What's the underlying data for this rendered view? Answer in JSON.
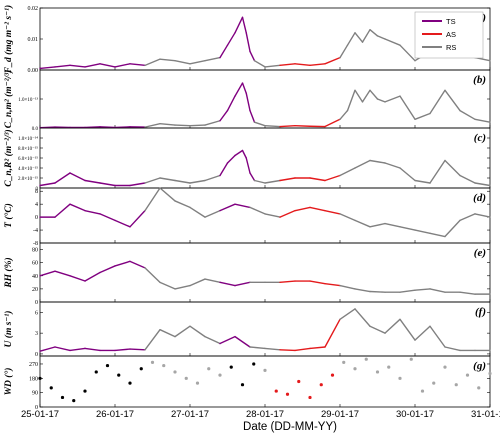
{
  "chart_data": {
    "type": "line",
    "xlabel": "Date (DD-MM-YY)",
    "x_ticks": [
      "25-01-17",
      "26-01-17",
      "27-01-17",
      "28-01-17",
      "29-01-17",
      "30-01-17",
      "31-01-17"
    ],
    "grid": false,
    "legend": {
      "position": "top-right",
      "entries": [
        {
          "name": "TS",
          "color": "#800080"
        },
        {
          "name": "AS",
          "color": "#e41a1c"
        },
        {
          "name": "RS",
          "color": "#808080"
        }
      ]
    },
    "series_colors": {
      "TS": "#800080",
      "AS": "#e41a1c",
      "RS": "#808080",
      "RS_wd": "#a6a6a6",
      "black": "#000000"
    },
    "segment_ranges": {
      "TS": [
        [
          25.0,
          26.45
        ],
        [
          27.45,
          27.86
        ]
      ],
      "RS": [
        [
          26.45,
          27.45
        ],
        [
          27.86,
          28.12
        ],
        [
          28.95,
          31.0
        ]
      ],
      "AS": [
        [
          28.12,
          28.95
        ]
      ]
    },
    "panels": [
      {
        "key": "a",
        "tag": "(a)",
        "ylabel": "F_d (mg m⁻² s⁻¹)",
        "ylim": [
          0,
          0.02
        ],
        "yticks": [
          0,
          0.01,
          0.02
        ],
        "ytick_labels": [
          "0.00",
          "0.01",
          "0.02"
        ],
        "style": "line",
        "x": [
          25.0,
          25.2,
          25.4,
          25.6,
          25.8,
          26.0,
          26.2,
          26.4,
          26.6,
          26.8,
          27.0,
          27.2,
          27.4,
          27.5,
          27.6,
          27.7,
          27.75,
          27.8,
          27.86,
          28.0,
          28.2,
          28.4,
          28.6,
          28.8,
          29.0,
          29.1,
          29.2,
          29.3,
          29.4,
          29.5,
          29.6,
          29.8,
          30.0,
          30.2,
          30.4,
          30.6,
          30.8,
          31.0
        ],
        "y": [
          0.0005,
          0.001,
          0.0015,
          0.001,
          0.002,
          0.001,
          0.002,
          0.0015,
          0.0035,
          0.003,
          0.002,
          0.003,
          0.004,
          0.008,
          0.012,
          0.017,
          0.012,
          0.006,
          0.003,
          0.001,
          0.0015,
          0.002,
          0.0015,
          0.002,
          0.004,
          0.008,
          0.012,
          0.009,
          0.013,
          0.011,
          0.01,
          0.008,
          0.003,
          0.006,
          0.012,
          0.008,
          0.004,
          0.003
        ]
      },
      {
        "key": "b",
        "tag": "(b)",
        "ylabel": "C_n,m² (m⁻²/³)",
        "ylim": [
          0,
          2e-13
        ],
        "yticks": [
          0,
          1e-13
        ],
        "ytick_labels": [
          "0.0",
          "1.0×10⁻¹³"
        ],
        "style": "line",
        "x": [
          25.0,
          25.2,
          25.4,
          25.6,
          25.8,
          26.0,
          26.2,
          26.4,
          26.6,
          26.8,
          27.0,
          27.2,
          27.4,
          27.5,
          27.6,
          27.7,
          27.75,
          27.8,
          27.86,
          28.0,
          28.2,
          28.4,
          28.6,
          28.8,
          29.0,
          29.1,
          29.2,
          29.3,
          29.4,
          29.5,
          29.6,
          29.8,
          30.0,
          30.2,
          30.4,
          30.6,
          30.8,
          31.0
        ],
        "y": [
          1e-15,
          3e-15,
          2e-15,
          2e-15,
          4e-15,
          2e-15,
          4e-15,
          3e-15,
          1.5e-14,
          1e-14,
          8e-15,
          1e-14,
          2.5e-14,
          6e-14,
          1.1e-13,
          1.55e-13,
          1.2e-13,
          6e-14,
          2e-14,
          8e-15,
          5e-15,
          8e-15,
          6e-15,
          5e-15,
          3e-14,
          6e-14,
          1.3e-13,
          9e-14,
          1.3e-13,
          1e-13,
          9e-14,
          1.1e-13,
          3e-14,
          5e-14,
          1.3e-13,
          6e-14,
          3e-14,
          2e-14
        ]
      },
      {
        "key": "c",
        "tag": "(c)",
        "ylabel": "C_n,R² (m⁻²/³)",
        "ylim": [
          0,
          1.2e-14
        ],
        "yticks": [
          0,
          2e-15,
          4e-15,
          6e-15,
          8e-15,
          1e-14
        ],
        "ytick_labels": [
          "0",
          "2.0×10⁻¹⁵",
          "4.0×10⁻¹⁵",
          "6.0×10⁻¹⁵",
          "8.0×10⁻¹⁵",
          "1.0×10⁻¹⁴"
        ],
        "style": "line",
        "x": [
          25.0,
          25.2,
          25.4,
          25.6,
          25.8,
          26.0,
          26.2,
          26.4,
          26.6,
          26.8,
          27.0,
          27.2,
          27.4,
          27.5,
          27.6,
          27.7,
          27.75,
          27.8,
          27.86,
          28.0,
          28.2,
          28.4,
          28.6,
          28.8,
          29.0,
          29.2,
          29.4,
          29.6,
          29.8,
          30.0,
          30.2,
          30.4,
          30.6,
          30.8,
          31.0
        ],
        "y": [
          5e-16,
          1e-15,
          3e-15,
          1.5e-15,
          1e-15,
          5e-16,
          5e-16,
          1e-15,
          2e-15,
          1.5e-15,
          1e-15,
          1.5e-15,
          2.5e-15,
          5e-15,
          6.5e-15,
          7.5e-15,
          6e-15,
          3e-15,
          1.5e-15,
          1e-15,
          1.5e-15,
          2e-15,
          2e-15,
          1.5e-15,
          2.5e-15,
          4e-15,
          5.5e-15,
          5e-15,
          4e-15,
          1.5e-15,
          1e-15,
          5.5e-15,
          2.5e-15,
          1e-15,
          5e-16
        ]
      },
      {
        "key": "d",
        "tag": "(d)",
        "ylabel": "T (°C)",
        "ylim": [
          -8,
          9
        ],
        "yticks": [
          -8,
          -4,
          0,
          4,
          8
        ],
        "ytick_labels": [
          "-8",
          "-4",
          "0",
          "4",
          "8"
        ],
        "style": "line",
        "x": [
          25.0,
          25.2,
          25.4,
          25.6,
          25.8,
          26.0,
          26.2,
          26.4,
          26.6,
          26.8,
          27.0,
          27.2,
          27.4,
          27.6,
          27.8,
          28.0,
          28.2,
          28.4,
          28.6,
          28.8,
          29.0,
          29.2,
          29.4,
          29.6,
          29.8,
          30.0,
          30.2,
          30.4,
          30.6,
          30.8,
          31.0
        ],
        "y": [
          0,
          0,
          4,
          2,
          1,
          -1,
          -3,
          2,
          9,
          5,
          3,
          0,
          2,
          4,
          3,
          1,
          0,
          2,
          3,
          2,
          1,
          -1,
          -3,
          -2,
          -3,
          -4,
          -5,
          -6,
          -1,
          1,
          0
        ]
      },
      {
        "key": "e",
        "tag": "(e)",
        "ylabel": "RH (%)",
        "ylim": [
          0,
          90
        ],
        "yticks": [
          0,
          20,
          40,
          60,
          80
        ],
        "ytick_labels": [
          "0",
          "20",
          "40",
          "60",
          "80"
        ],
        "style": "line",
        "x": [
          25.0,
          25.2,
          25.4,
          25.6,
          25.8,
          26.0,
          26.2,
          26.4,
          26.6,
          26.8,
          27.0,
          27.2,
          27.4,
          27.6,
          27.8,
          28.0,
          28.2,
          28.4,
          28.6,
          28.8,
          29.0,
          29.2,
          29.4,
          29.6,
          29.8,
          30.0,
          30.2,
          30.4,
          30.6,
          30.8,
          31.0
        ],
        "y": [
          40,
          47,
          40,
          32,
          45,
          55,
          62,
          52,
          30,
          20,
          25,
          35,
          30,
          25,
          30,
          30,
          30,
          32,
          32,
          28,
          25,
          20,
          16,
          15,
          15,
          18,
          20,
          15,
          15,
          12,
          12
        ]
      },
      {
        "key": "f",
        "tag": "(f)",
        "ylabel": "U (m s⁻¹)",
        "ylim": [
          -0.3,
          7.5
        ],
        "yticks": [
          0,
          3,
          6
        ],
        "ytick_labels": [
          "0",
          "3",
          "6"
        ],
        "style": "line",
        "x": [
          25.0,
          25.2,
          25.4,
          25.6,
          25.8,
          26.0,
          26.2,
          26.4,
          26.6,
          26.8,
          27.0,
          27.2,
          27.4,
          27.6,
          27.8,
          28.0,
          28.2,
          28.4,
          28.6,
          28.8,
          29.0,
          29.2,
          29.4,
          29.6,
          29.8,
          30.0,
          30.2,
          30.4,
          30.6,
          30.8,
          31.0
        ],
        "y": [
          0.4,
          1.0,
          0.5,
          0.8,
          0.5,
          0.5,
          0.7,
          0.6,
          3.5,
          2.5,
          4.0,
          2.5,
          1.5,
          2.5,
          1.0,
          0.8,
          0.6,
          0.5,
          0.8,
          1.0,
          5.0,
          6.5,
          4.0,
          3.0,
          5.0,
          2.0,
          4.0,
          1.0,
          0.5,
          0.5,
          0.5
        ]
      },
      {
        "key": "g",
        "tag": "(g)",
        "ylabel": "WD (°)",
        "ylim": [
          0,
          320
        ],
        "yticks": [
          0,
          90,
          180,
          270
        ],
        "ytick_labels": [
          "0",
          "90",
          "180",
          "270"
        ],
        "style": "dots",
        "x": [
          25.0,
          25.15,
          25.3,
          25.45,
          25.6,
          25.75,
          25.9,
          26.05,
          26.2,
          26.35,
          26.5,
          26.65,
          26.8,
          26.95,
          27.1,
          27.25,
          27.4,
          27.55,
          27.7,
          27.85,
          28.0,
          28.15,
          28.3,
          28.45,
          28.6,
          28.75,
          28.9,
          29.05,
          29.2,
          29.35,
          29.5,
          29.65,
          29.8,
          29.95,
          30.1,
          30.25,
          30.4,
          30.55,
          30.7,
          30.85,
          31.0
        ],
        "y": [
          180,
          120,
          60,
          40,
          100,
          220,
          260,
          200,
          150,
          240,
          280,
          260,
          220,
          180,
          150,
          240,
          200,
          250,
          140,
          270,
          230,
          100,
          80,
          160,
          60,
          140,
          200,
          280,
          240,
          300,
          220,
          250,
          180,
          300,
          100,
          150,
          250,
          140,
          200,
          120,
          210
        ]
      }
    ]
  }
}
